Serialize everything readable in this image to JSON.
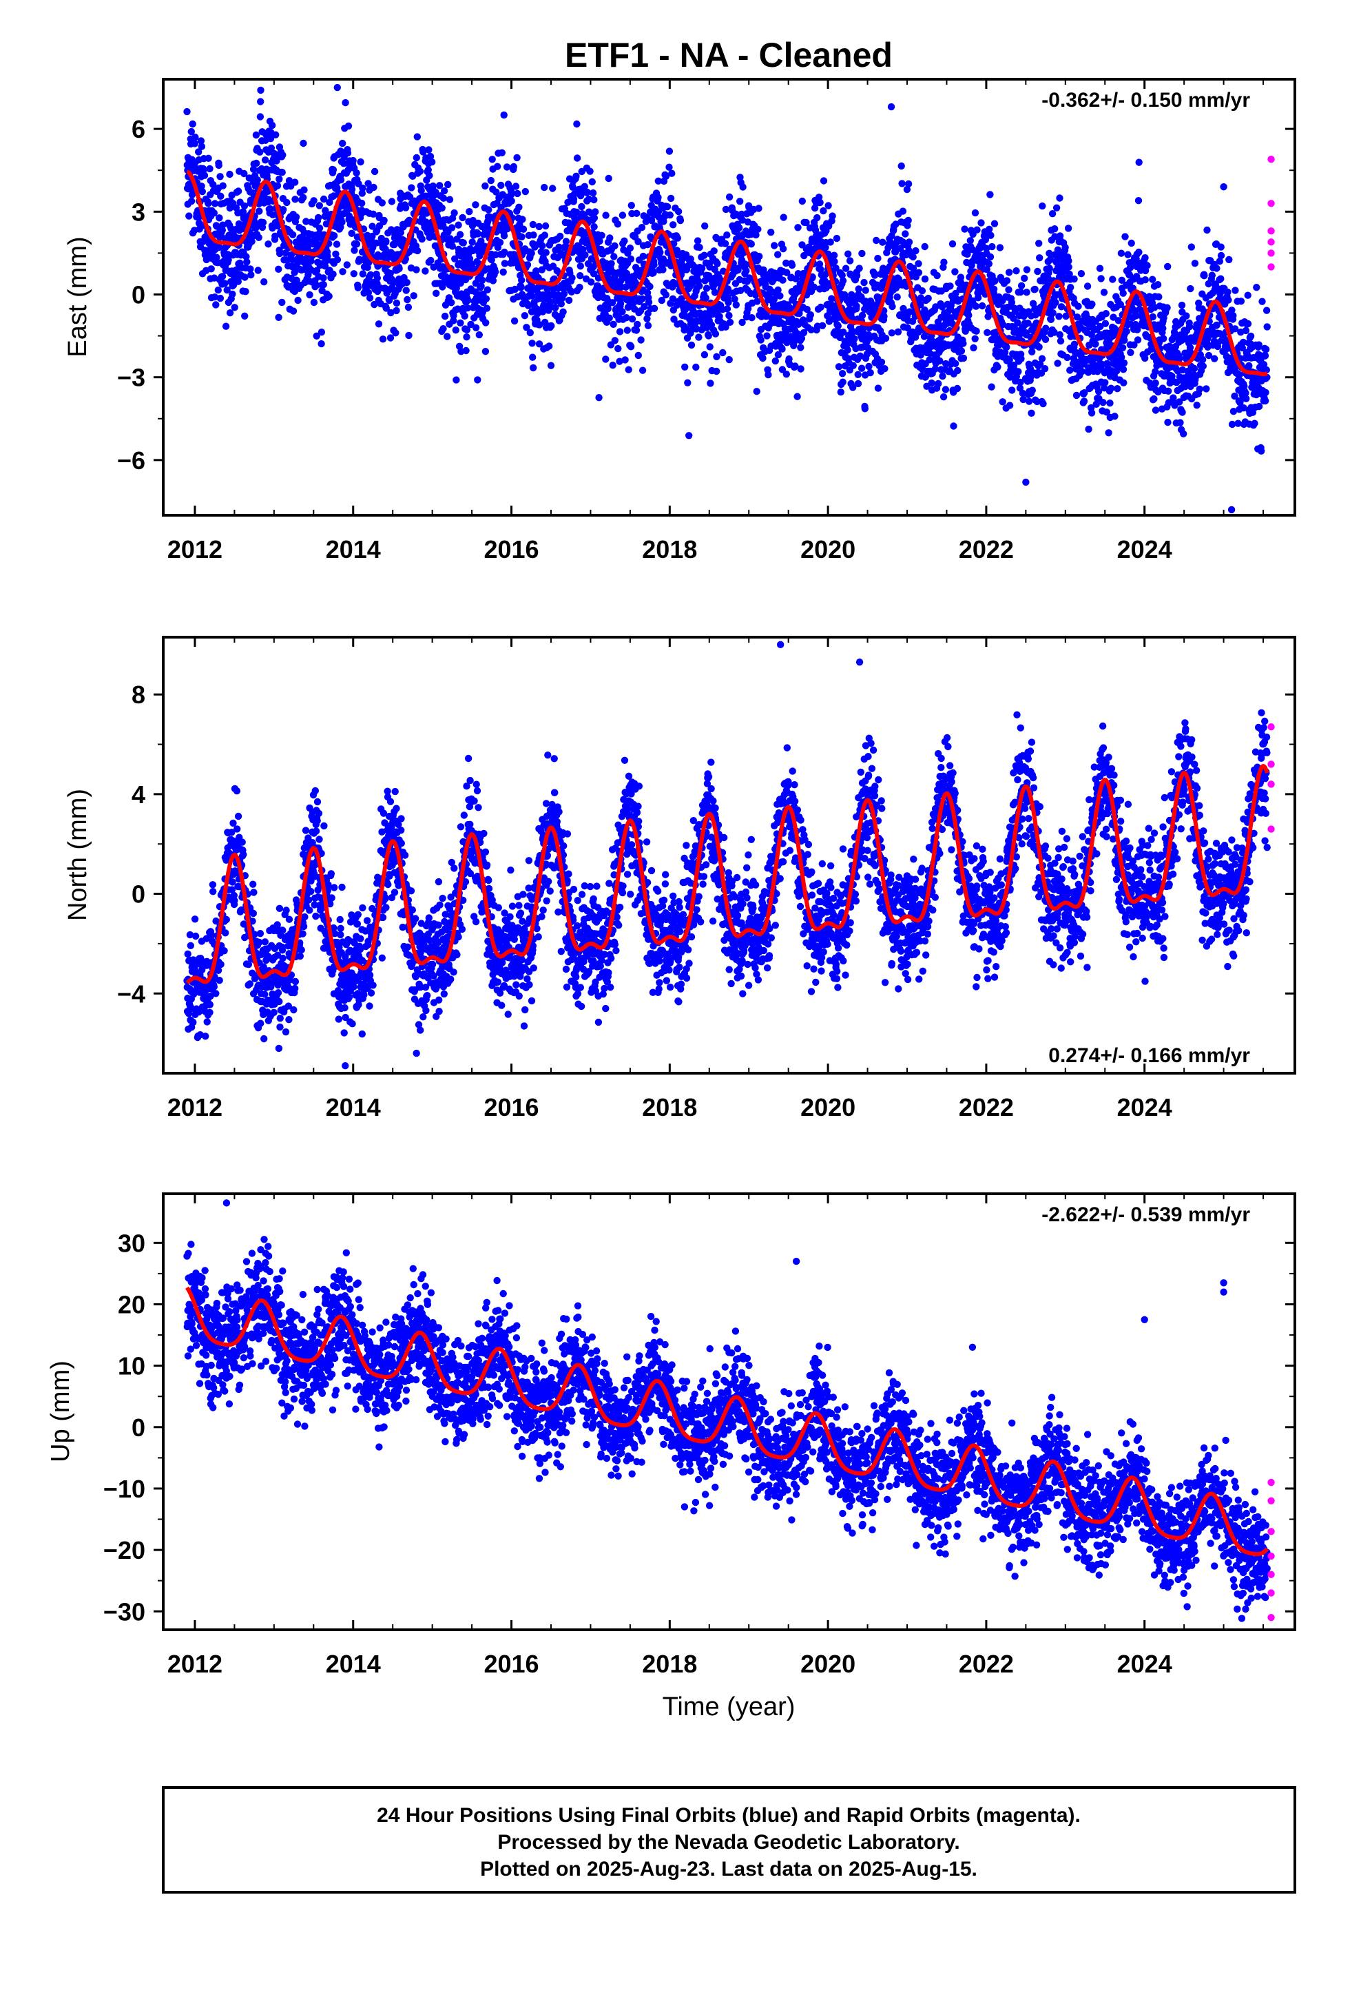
{
  "title": "ETF1  - NA - Cleaned",
  "xlabel": "Time (year)",
  "footer": {
    "line1": "24 Hour Positions Using Final Orbits (blue) and Rapid Orbits (magenta).",
    "line2": "Processed by the Nevada Geodetic Laboratory.",
    "line3": "Plotted on 2025-Aug-23. Last data on 2025-Aug-15."
  },
  "colors": {
    "final_orbits": "#0000ff",
    "rapid_orbits": "#ff00ff",
    "model": "#ff0000",
    "frame": "#000000"
  },
  "chart_data": [
    {
      "type": "scatter",
      "ylabel": "East (mm)",
      "rate_label": "-0.362+/- 0.150 mm/yr",
      "rate_position": "top-right",
      "xlim": [
        2011.6,
        2025.9
      ],
      "ylim": [
        -8,
        7.8
      ],
      "xticks": [
        2012,
        2014,
        2016,
        2018,
        2020,
        2022,
        2024
      ],
      "yticks": [
        -6,
        -3,
        0,
        3,
        6
      ],
      "ytick_labels": [
        "−6",
        "−3",
        "0",
        "3",
        "6"
      ],
      "model": {
        "start_year": 2011.9,
        "end_year": 2025.55,
        "offset_at_start": 2.9,
        "rate": -0.362,
        "annual_amp": 1.2,
        "semiannual_amp": 0.35,
        "annual_peak": 0.9
      },
      "scatter": {
        "density_per_year": 365,
        "noise": 1.2
      },
      "rapid_points": [
        {
          "x": 2025.6,
          "y": 4.9
        },
        {
          "x": 2025.6,
          "y": 3.3
        },
        {
          "x": 2025.6,
          "y": 2.3
        },
        {
          "x": 2025.6,
          "y": 1.9
        },
        {
          "x": 2025.6,
          "y": 1.5
        },
        {
          "x": 2025.6,
          "y": 1.0
        }
      ],
      "outliers": [
        {
          "x": 2013.8,
          "y": 7.5
        },
        {
          "x": 2020.8,
          "y": 6.8
        },
        {
          "x": 2022.5,
          "y": -6.8
        },
        {
          "x": 2025.1,
          "y": -7.8
        },
        {
          "x": 2025.0,
          "y": 3.9
        }
      ]
    },
    {
      "type": "scatter",
      "ylabel": "North (mm)",
      "rate_label": "0.274+/- 0.166 mm/yr",
      "rate_position": "bottom-right",
      "xlim": [
        2011.6,
        2025.9
      ],
      "ylim": [
        -7.2,
        10.3
      ],
      "xticks": [
        2012,
        2014,
        2016,
        2018,
        2020,
        2022,
        2024
      ],
      "yticks": [
        -4,
        0,
        4,
        8
      ],
      "ytick_labels": [
        "−4",
        "0",
        "4",
        "8"
      ],
      "model": {
        "start_year": 2011.9,
        "end_year": 2025.55,
        "offset_at_start": -1.9,
        "rate": 0.274,
        "annual_amp": 2.4,
        "semiannual_amp": 0.9,
        "annual_peak": 0.5
      },
      "scatter": {
        "density_per_year": 365,
        "noise": 1.1
      },
      "rapid_points": [
        {
          "x": 2025.6,
          "y": 6.7
        },
        {
          "x": 2025.6,
          "y": 5.2
        },
        {
          "x": 2025.6,
          "y": 4.4
        },
        {
          "x": 2025.6,
          "y": 2.6
        }
      ],
      "outliers": [
        {
          "x": 2019.4,
          "y": 10.0
        },
        {
          "x": 2020.4,
          "y": 9.3
        },
        {
          "x": 2013.9,
          "y": -6.9
        },
        {
          "x": 2014.8,
          "y": -6.4
        }
      ]
    },
    {
      "type": "scatter",
      "ylabel": "Up (mm)",
      "rate_label": "-2.622+/- 0.539 mm/yr",
      "rate_position": "top-right",
      "xlim": [
        2011.6,
        2025.9
      ],
      "ylim": [
        -33,
        38
      ],
      "xticks": [
        2012,
        2014,
        2016,
        2018,
        2020,
        2022,
        2024
      ],
      "yticks": [
        -30,
        -20,
        -10,
        0,
        10,
        20,
        30
      ],
      "ytick_labels": [
        "−30",
        "−20",
        "−10",
        "0",
        "10",
        "20",
        "30"
      ],
      "model": {
        "start_year": 2011.9,
        "end_year": 2025.55,
        "offset_at_start": 18.0,
        "rate": -2.622,
        "annual_amp": 4.2,
        "semiannual_amp": 0.9,
        "annual_peak": 0.85
      },
      "scatter": {
        "density_per_year": 365,
        "noise": 4.2
      },
      "rapid_points": [
        {
          "x": 2025.6,
          "y": -9
        },
        {
          "x": 2025.6,
          "y": -12
        },
        {
          "x": 2025.6,
          "y": -17
        },
        {
          "x": 2025.6,
          "y": -21
        },
        {
          "x": 2025.6,
          "y": -24
        },
        {
          "x": 2025.6,
          "y": -27
        },
        {
          "x": 2025.6,
          "y": -31
        }
      ],
      "outliers": [
        {
          "x": 2012.4,
          "y": 36.5
        },
        {
          "x": 2019.6,
          "y": 27
        },
        {
          "x": 2024.0,
          "y": 17.5
        },
        {
          "x": 2025.0,
          "y": 23.5
        },
        {
          "x": 2025.0,
          "y": 22
        }
      ]
    }
  ]
}
